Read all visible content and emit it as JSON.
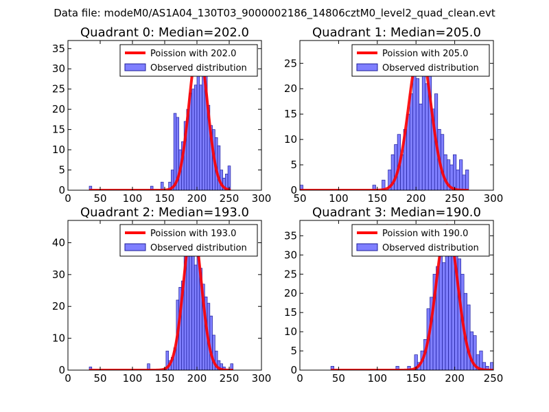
{
  "figure": {
    "suptitle": "Data file: modeM0/AS1A04_130T03_9000002186_14806cztM0_level2_quad_clean.evt"
  },
  "colors": {
    "bar_fill": "#7f7fff",
    "bar_edge": "#1d1d9a",
    "curve": "#ff0000",
    "axes": "#000000",
    "legend_edge": "#000000",
    "background": "#ffffff"
  },
  "chart_data": [
    {
      "type": "bar",
      "title": "Quadrant 0: Median=202.0",
      "xlim": [
        0,
        300
      ],
      "ylim": [
        0,
        37
      ],
      "xticks": [
        0,
        50,
        100,
        150,
        200,
        250,
        300
      ],
      "yticks": [
        0,
        5,
        10,
        15,
        20,
        25,
        30,
        35
      ],
      "xtick_labels": [
        "0",
        "50",
        "100",
        "150",
        "200",
        "250",
        "300"
      ],
      "ytick_labels": [
        "0",
        "5",
        "10",
        "15",
        "20",
        "25",
        "30",
        "35"
      ],
      "legend": {
        "curve_label": "Poission with 202.0",
        "hist_label": "Observed distribution",
        "loc": "upper right"
      },
      "poisson_mean": 202.0,
      "curve_peak": 35.6,
      "histogram": {
        "bin_width": 4,
        "bins": [
          [
            33,
            1
          ],
          [
            128,
            1
          ],
          [
            144,
            2
          ],
          [
            156,
            2
          ],
          [
            160,
            5
          ],
          [
            164,
            19
          ],
          [
            168,
            18
          ],
          [
            172,
            10
          ],
          [
            176,
            12
          ],
          [
            180,
            17
          ],
          [
            184,
            20
          ],
          [
            188,
            24
          ],
          [
            192,
            25
          ],
          [
            196,
            26
          ],
          [
            200,
            29
          ],
          [
            204,
            26
          ],
          [
            208,
            29
          ],
          [
            212,
            29
          ],
          [
            216,
            21
          ],
          [
            220,
            16
          ],
          [
            224,
            15
          ],
          [
            228,
            13
          ],
          [
            232,
            11
          ],
          [
            236,
            5
          ],
          [
            240,
            3
          ],
          [
            244,
            4
          ],
          [
            248,
            6
          ]
        ]
      }
    },
    {
      "type": "bar",
      "title": "Quadrant 1: Median=205.0",
      "xlim": [
        50,
        300
      ],
      "ylim": [
        0,
        29.5
      ],
      "xticks": [
        50,
        100,
        150,
        200,
        250,
        300
      ],
      "yticks": [
        0,
        5,
        10,
        15,
        20,
        25
      ],
      "xtick_labels": [
        "50",
        "100",
        "150",
        "200",
        "250",
        "300"
      ],
      "ytick_labels": [
        "0",
        "5",
        "10",
        "15",
        "20",
        "25"
      ],
      "legend": {
        "curve_label": "Poission with 205.0",
        "hist_label": "Observed distribution",
        "loc": "upper right"
      },
      "poisson_mean": 205.0,
      "curve_peak": 27.9,
      "histogram": {
        "bin_width": 4,
        "bins": [
          [
            50,
            1
          ],
          [
            144,
            1
          ],
          [
            156,
            2
          ],
          [
            164,
            4
          ],
          [
            168,
            7
          ],
          [
            172,
            9
          ],
          [
            176,
            11
          ],
          [
            180,
            7
          ],
          [
            184,
            12
          ],
          [
            188,
            15
          ],
          [
            192,
            19
          ],
          [
            196,
            25
          ],
          [
            200,
            22
          ],
          [
            204,
            17
          ],
          [
            208,
            27
          ],
          [
            212,
            21
          ],
          [
            216,
            24
          ],
          [
            220,
            16
          ],
          [
            224,
            19
          ],
          [
            228,
            12
          ],
          [
            232,
            11
          ],
          [
            236,
            7
          ],
          [
            240,
            6
          ],
          [
            244,
            5
          ],
          [
            248,
            7
          ],
          [
            252,
            4
          ],
          [
            256,
            6
          ],
          [
            260,
            3
          ],
          [
            264,
            4
          ]
        ]
      }
    },
    {
      "type": "bar",
      "title": "Quadrant 2: Median=193.0",
      "xlim": [
        0,
        300
      ],
      "ylim": [
        0,
        47
      ],
      "xticks": [
        0,
        50,
        100,
        150,
        200,
        250,
        300
      ],
      "yticks": [
        0,
        10,
        20,
        30,
        40
      ],
      "xtick_labels": [
        "0",
        "50",
        "100",
        "150",
        "200",
        "250",
        "300"
      ],
      "ytick_labels": [
        "0",
        "10",
        "20",
        "30",
        "40"
      ],
      "legend": {
        "curve_label": "Poission with 193.0",
        "hist_label": "Observed distribution",
        "loc": "upper right"
      },
      "poisson_mean": 193.0,
      "curve_peak": 45.2,
      "histogram": {
        "bin_width": 4,
        "bins": [
          [
            33,
            1
          ],
          [
            123,
            2
          ],
          [
            152,
            6
          ],
          [
            156,
            3
          ],
          [
            160,
            4
          ],
          [
            164,
            7
          ],
          [
            168,
            22
          ],
          [
            172,
            26
          ],
          [
            176,
            28
          ],
          [
            180,
            42
          ],
          [
            184,
            40
          ],
          [
            188,
            43
          ],
          [
            192,
            40
          ],
          [
            196,
            33
          ],
          [
            200,
            42
          ],
          [
            204,
            32
          ],
          [
            208,
            27
          ],
          [
            212,
            23
          ],
          [
            216,
            21
          ],
          [
            220,
            17
          ],
          [
            224,
            11
          ],
          [
            228,
            6
          ],
          [
            232,
            3
          ],
          [
            236,
            2
          ],
          [
            240,
            1
          ],
          [
            252,
            2
          ]
        ]
      }
    },
    {
      "type": "bar",
      "title": "Quadrant 3: Median=190.0",
      "xlim": [
        0,
        250
      ],
      "ylim": [
        0,
        39
      ],
      "xticks": [
        0,
        50,
        100,
        150,
        200,
        250
      ],
      "yticks": [
        0,
        5,
        10,
        15,
        20,
        25,
        30,
        35
      ],
      "xtick_labels": [
        "0",
        "50",
        "100",
        "150",
        "200",
        "250"
      ],
      "ytick_labels": [
        "0",
        "5",
        "10",
        "15",
        "20",
        "25",
        "30",
        "35"
      ],
      "legend": {
        "curve_label": "Poission with 190.0",
        "hist_label": "Observed distribution",
        "loc": "upper right"
      },
      "poisson_mean": 190.0,
      "curve_peak": 37.7,
      "histogram": {
        "bin_width": 4,
        "bins": [
          [
            40,
            1
          ],
          [
            124,
            1
          ],
          [
            139,
            1
          ],
          [
            148,
            4
          ],
          [
            152,
            2
          ],
          [
            156,
            5
          ],
          [
            160,
            8
          ],
          [
            164,
            16
          ],
          [
            168,
            19
          ],
          [
            172,
            25
          ],
          [
            176,
            27
          ],
          [
            180,
            30
          ],
          [
            184,
            28
          ],
          [
            188,
            36
          ],
          [
            192,
            36
          ],
          [
            196,
            31
          ],
          [
            200,
            30
          ],
          [
            204,
            29
          ],
          [
            208,
            25
          ],
          [
            212,
            20
          ],
          [
            216,
            17
          ],
          [
            220,
            10
          ],
          [
            224,
            9
          ],
          [
            228,
            4
          ],
          [
            232,
            5
          ],
          [
            236,
            2
          ],
          [
            240,
            1
          ],
          [
            246,
            2
          ]
        ]
      }
    }
  ]
}
